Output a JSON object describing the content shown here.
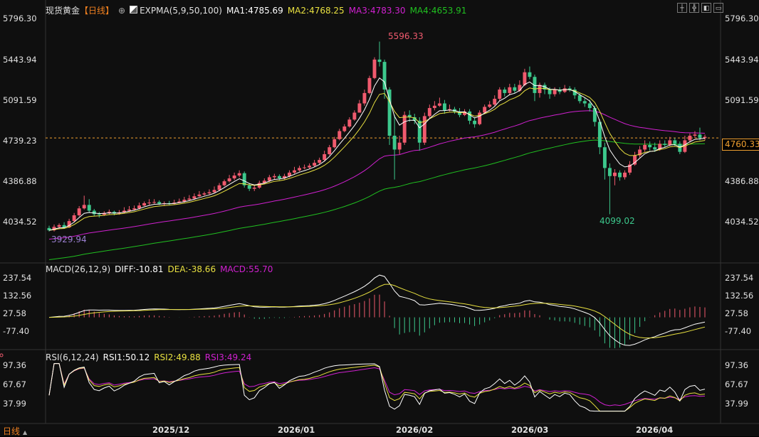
{
  "header": {
    "symbol": "现货黄金",
    "period_tag": "【日线】",
    "circle_plus": "⊕",
    "indicator": "EXPMA(5,9,50,100)",
    "ma1": "MA1:4785.69",
    "ma2": "MA2:4768.25",
    "ma3": "MA3:4783.30",
    "ma4": "MA4:4653.91"
  },
  "macd_header": {
    "name": "MACD(26,12,9)",
    "diff": "DIFF:-10.81",
    "dea": "DEA:-38.66",
    "macd": "MACD:55.70"
  },
  "rsi_header": {
    "name": "RSI(6,12,24)",
    "rsi1": "RSI1:50.12",
    "rsi2": "RSI2:49.88",
    "rsi3": "RSI3:49.24"
  },
  "footer": {
    "period_label": "日线"
  },
  "colors": {
    "up": "#f05a6e",
    "down": "#3cc88c",
    "ma1": "#ffffff",
    "ma2": "#e8e040",
    "ma3": "#d020d0",
    "ma4": "#20c020",
    "accent": "#f0a030"
  },
  "chart_data": [
    {
      "type": "candlestick",
      "title": "现货黄金 日线",
      "y_axis_ticks": [
        "5796.30",
        "5443.94",
        "5091.59",
        "4739.23",
        "4386.88",
        "4034.52"
      ],
      "ylim": [
        3860,
        5820
      ],
      "x_ticks": [
        "2025/12",
        "2026/01",
        "2026/02",
        "2026/03",
        "2026/04"
      ],
      "annotations": {
        "high": "5596.33",
        "low": "4099.02",
        "start_low": "3929.94"
      },
      "last_price": "4760.33",
      "candles": [
        [
          3980,
          3960,
          4000,
          3950
        ],
        [
          3960,
          3990,
          4010,
          3950
        ],
        [
          3990,
          4005,
          4020,
          3970
        ],
        [
          4005,
          3985,
          4030,
          3975
        ],
        [
          3985,
          4040,
          4060,
          3980
        ],
        [
          4040,
          4090,
          4110,
          4030
        ],
        [
          4090,
          4150,
          4170,
          4080
        ],
        [
          4150,
          4180,
          4260,
          4140
        ],
        [
          4180,
          4130,
          4230,
          4110
        ],
        [
          4130,
          4100,
          4145,
          4080
        ],
        [
          4100,
          4095,
          4120,
          4070
        ],
        [
          4095,
          4110,
          4125,
          4085
        ],
        [
          4110,
          4120,
          4140,
          4095
        ],
        [
          4120,
          4105,
          4130,
          4090
        ],
        [
          4105,
          4115,
          4135,
          4095
        ],
        [
          4115,
          4130,
          4160,
          4105
        ],
        [
          4130,
          4140,
          4170,
          4120
        ],
        [
          4140,
          4150,
          4175,
          4130
        ],
        [
          4150,
          4175,
          4200,
          4140
        ],
        [
          4175,
          4195,
          4210,
          4170
        ],
        [
          4195,
          4200,
          4230,
          4180
        ],
        [
          4200,
          4205,
          4230,
          4190
        ],
        [
          4205,
          4190,
          4220,
          4180
        ],
        [
          4190,
          4195,
          4210,
          4170
        ],
        [
          4195,
          4190,
          4215,
          4180
        ],
        [
          4190,
          4200,
          4225,
          4185
        ],
        [
          4200,
          4210,
          4235,
          4195
        ],
        [
          4210,
          4225,
          4250,
          4200
        ],
        [
          4225,
          4235,
          4265,
          4215
        ],
        [
          4235,
          4255,
          4280,
          4225
        ],
        [
          4255,
          4270,
          4300,
          4250
        ],
        [
          4270,
          4280,
          4295,
          4260
        ],
        [
          4280,
          4290,
          4315,
          4270
        ],
        [
          4290,
          4310,
          4340,
          4285
        ],
        [
          4310,
          4350,
          4370,
          4300
        ],
        [
          4350,
          4385,
          4400,
          4340
        ],
        [
          4385,
          4410,
          4440,
          4375
        ],
        [
          4410,
          4435,
          4460,
          4395
        ],
        [
          4435,
          4455,
          4480,
          4420
        ],
        [
          4455,
          4350,
          4470,
          4330
        ],
        [
          4350,
          4320,
          4370,
          4300
        ],
        [
          4320,
          4330,
          4350,
          4300
        ],
        [
          4330,
          4370,
          4390,
          4320
        ],
        [
          4370,
          4390,
          4410,
          4360
        ],
        [
          4390,
          4420,
          4440,
          4380
        ],
        [
          4420,
          4430,
          4450,
          4400
        ],
        [
          4430,
          4410,
          4445,
          4395
        ],
        [
          4410,
          4430,
          4450,
          4400
        ],
        [
          4430,
          4460,
          4480,
          4420
        ],
        [
          4460,
          4480,
          4510,
          4450
        ],
        [
          4480,
          4500,
          4520,
          4470
        ],
        [
          4500,
          4505,
          4530,
          4490
        ],
        [
          4505,
          4520,
          4540,
          4495
        ],
        [
          4520,
          4545,
          4570,
          4510
        ],
        [
          4545,
          4570,
          4590,
          4530
        ],
        [
          4570,
          4620,
          4650,
          4560
        ],
        [
          4620,
          4680,
          4700,
          4610
        ],
        [
          4680,
          4750,
          4770,
          4670
        ],
        [
          4750,
          4820,
          4840,
          4740
        ],
        [
          4820,
          4860,
          4880,
          4810
        ],
        [
          4860,
          4920,
          4940,
          4850
        ],
        [
          4920,
          4980,
          5000,
          4910
        ],
        [
          4980,
          5060,
          5090,
          5000
        ],
        [
          5060,
          5150,
          5180,
          5040
        ],
        [
          5150,
          5280,
          5300,
          5140
        ],
        [
          5280,
          5440,
          5460,
          5270
        ],
        [
          5440,
          5420,
          5596,
          5380
        ],
        [
          5420,
          5180,
          5440,
          5100
        ],
        [
          5180,
          4780,
          5200,
          4700
        ],
        [
          4780,
          4660,
          4960,
          4400
        ],
        [
          4660,
          4720,
          4780,
          4620
        ],
        [
          4720,
          4960,
          4990,
          4700
        ],
        [
          4960,
          4940,
          5000,
          4900
        ],
        [
          4940,
          4910,
          4970,
          4880
        ],
        [
          4910,
          4720,
          4940,
          4650
        ],
        [
          4720,
          4950,
          4980,
          4700
        ],
        [
          4950,
          5020,
          5050,
          4930
        ],
        [
          5020,
          5040,
          5080,
          5000
        ],
        [
          5040,
          5060,
          5110,
          5030
        ],
        [
          5060,
          5000,
          5090,
          4970
        ],
        [
          5000,
          5010,
          5050,
          4990
        ],
        [
          5010,
          4990,
          5030,
          4970
        ],
        [
          4990,
          4960,
          5020,
          4940
        ],
        [
          4960,
          4990,
          5010,
          4950
        ],
        [
          4990,
          4910,
          5010,
          4880
        ],
        [
          4910,
          4880,
          4940,
          4850
        ],
        [
          4880,
          4980,
          5000,
          4870
        ],
        [
          4980,
          5030,
          5050,
          4970
        ],
        [
          5030,
          5050,
          5080,
          5020
        ],
        [
          5050,
          5100,
          5130,
          5040
        ],
        [
          5100,
          5180,
          5200,
          5080
        ],
        [
          5180,
          5150,
          5200,
          5120
        ],
        [
          5150,
          5200,
          5230,
          5130
        ],
        [
          5200,
          5170,
          5230,
          5150
        ],
        [
          5170,
          5220,
          5260,
          5160
        ],
        [
          5220,
          5330,
          5360,
          5210
        ],
        [
          5330,
          5290,
          5380,
          5270
        ],
        [
          5290,
          5150,
          5310,
          5080
        ],
        [
          5150,
          5220,
          5240,
          5110
        ],
        [
          5220,
          5180,
          5240,
          5140
        ],
        [
          5180,
          5140,
          5200,
          5100
        ],
        [
          5140,
          5180,
          5200,
          5120
        ],
        [
          5180,
          5160,
          5200,
          5140
        ],
        [
          5160,
          5190,
          5220,
          5150
        ],
        [
          5190,
          5180,
          5210,
          5160
        ],
        [
          5180,
          5130,
          5200,
          5100
        ],
        [
          5130,
          5080,
          5150,
          5060
        ],
        [
          5080,
          5060,
          5110,
          5030
        ],
        [
          5060,
          5020,
          5090,
          4990
        ],
        [
          5020,
          4900,
          5040,
          4860
        ],
        [
          4900,
          4680,
          4920,
          4620
        ],
        [
          4680,
          4500,
          4720,
          4400
        ],
        [
          4500,
          4430,
          4540,
          4099
        ],
        [
          4430,
          4460,
          4490,
          4350
        ],
        [
          4460,
          4420,
          4480,
          4390
        ],
        [
          4420,
          4460,
          4480,
          4400
        ],
        [
          4460,
          4530,
          4560,
          4440
        ],
        [
          4530,
          4610,
          4640,
          4520
        ],
        [
          4610,
          4660,
          4690,
          4590
        ],
        [
          4660,
          4700,
          4740,
          4640
        ],
        [
          4700,
          4680,
          4730,
          4650
        ],
        [
          4680,
          4660,
          4720,
          4640
        ],
        [
          4660,
          4710,
          4740,
          4650
        ],
        [
          4710,
          4700,
          4740,
          4680
        ],
        [
          4700,
          4740,
          4770,
          4690
        ],
        [
          4740,
          4710,
          4760,
          4690
        ],
        [
          4710,
          4640,
          4730,
          4620
        ],
        [
          4640,
          4740,
          4780,
          4630
        ],
        [
          4740,
          4780,
          4800,
          4720
        ],
        [
          4780,
          4790,
          4820,
          4760
        ],
        [
          4790,
          4760,
          4850,
          4740
        ],
        [
          4760,
          4770,
          4790,
          4740
        ]
      ]
    },
    {
      "type": "line",
      "title": "MACD(26,12,9)",
      "y_axis_ticks": [
        "237.54",
        "132.56",
        "27.58",
        "-77.40"
      ],
      "ylim": [
        -180,
        260
      ],
      "series_names": [
        "DIFF",
        "DEA",
        "MACD"
      ]
    },
    {
      "type": "line",
      "title": "RSI(6,12,24)",
      "y_axis_ticks": [
        "97.36",
        "67.67",
        "37.99"
      ],
      "ylim": [
        20,
        105
      ],
      "series_names": [
        "RSI1",
        "RSI2",
        "RSI3"
      ]
    }
  ]
}
